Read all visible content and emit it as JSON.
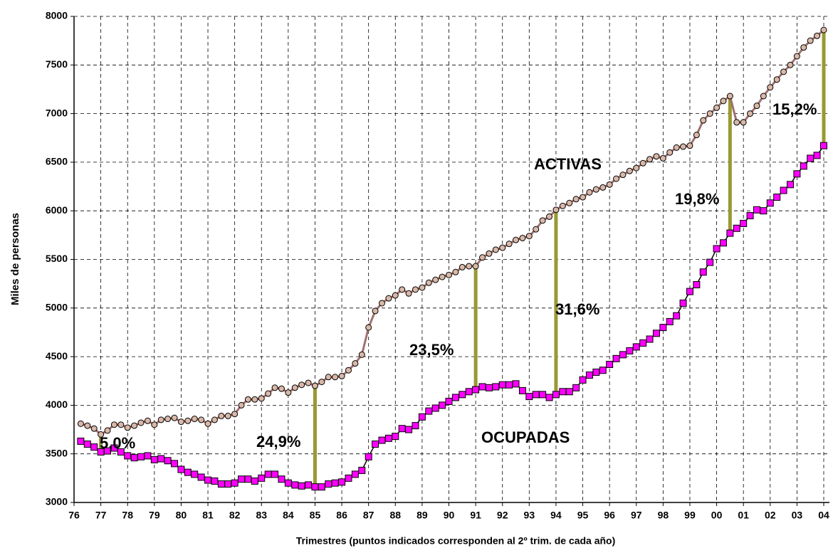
{
  "chart_data": {
    "type": "line",
    "xlabel": "Trimestres (puntos indicados corresponden al 2º trim. de cada año)",
    "ylabel": "Miles de personas",
    "categories": [
      "76",
      null,
      null,
      null,
      "77",
      null,
      null,
      null,
      "78",
      null,
      null,
      null,
      "79",
      null,
      null,
      null,
      "80",
      null,
      null,
      null,
      "81",
      null,
      null,
      null,
      "82",
      null,
      null,
      null,
      "83",
      null,
      null,
      null,
      "84",
      null,
      null,
      null,
      "85",
      null,
      null,
      null,
      "86",
      null,
      null,
      null,
      "87",
      null,
      null,
      null,
      "88",
      null,
      null,
      null,
      "89",
      null,
      null,
      null,
      "90",
      null,
      null,
      null,
      "91",
      null,
      null,
      null,
      "92",
      null,
      null,
      null,
      "93",
      null,
      null,
      null,
      "94",
      null,
      null,
      null,
      "95",
      null,
      null,
      null,
      "96",
      null,
      null,
      null,
      "97",
      null,
      null,
      null,
      "98",
      null,
      null,
      null,
      "99",
      null,
      null,
      null,
      "00",
      null,
      null,
      null,
      "01",
      null,
      null,
      null,
      "02",
      null,
      null,
      null,
      "03",
      null,
      null,
      null,
      "04"
    ],
    "series": [
      {
        "name": "ACTIVAS",
        "color": "#a07070",
        "marker_color": "#d9b8a8",
        "values": [
          null,
          3810,
          3790,
          3760,
          3700,
          3740,
          3800,
          3800,
          3770,
          3790,
          3820,
          3840,
          3800,
          3850,
          3860,
          3870,
          3830,
          3840,
          3860,
          3850,
          3810,
          3850,
          3890,
          3890,
          3910,
          4000,
          4060,
          4060,
          4070,
          4120,
          4180,
          4170,
          4130,
          4180,
          4210,
          4230,
          4200,
          4240,
          4290,
          4290,
          4300,
          4360,
          4430,
          4520,
          4800,
          4970,
          5050,
          5100,
          5130,
          5190,
          5150,
          5190,
          5210,
          5260,
          5290,
          5320,
          5340,
          5370,
          5420,
          5430,
          5430,
          5520,
          5560,
          5600,
          5620,
          5660,
          5700,
          5720,
          5740,
          5810,
          5900,
          5940,
          6010,
          6050,
          6080,
          6120,
          6140,
          6190,
          6220,
          6240,
          6270,
          6330,
          6370,
          6410,
          6440,
          6490,
          6530,
          6560,
          6540,
          6600,
          6650,
          6660,
          6670,
          6780,
          6930,
          7000,
          7060,
          7130,
          7180,
          6910,
          6910,
          7000,
          7080,
          7180,
          7270,
          7350,
          7430,
          7500,
          7590,
          7680,
          7750,
          7800,
          7860
        ]
      },
      {
        "name": "OCUPADAS",
        "color": "#000000",
        "marker_color": "#ff00ff",
        "values": [
          null,
          3630,
          3600,
          3570,
          3520,
          3530,
          3560,
          3520,
          3480,
          3460,
          3470,
          3480,
          3440,
          3450,
          3430,
          3400,
          3340,
          3310,
          3290,
          3260,
          3230,
          3220,
          3190,
          3190,
          3200,
          3240,
          3240,
          3220,
          3250,
          3290,
          3290,
          3240,
          3200,
          3180,
          3170,
          3180,
          3160,
          3160,
          3190,
          3200,
          3210,
          3250,
          3290,
          3330,
          3470,
          3600,
          3640,
          3660,
          3680,
          3760,
          3750,
          3790,
          3880,
          3940,
          3970,
          4000,
          4040,
          4080,
          4110,
          4140,
          4160,
          4190,
          4180,
          4190,
          4210,
          4210,
          4220,
          4150,
          4090,
          4110,
          4110,
          4080,
          4110,
          4140,
          4140,
          4180,
          4260,
          4310,
          4340,
          4360,
          4420,
          4480,
          4520,
          4560,
          4600,
          4640,
          4680,
          4740,
          4800,
          4860,
          4920,
          5050,
          5170,
          5240,
          5370,
          5470,
          5610,
          5670,
          5770,
          5820,
          5870,
          5950,
          6010,
          6000,
          6080,
          6140,
          6210,
          6270,
          6380,
          6460,
          6540,
          6570,
          6670
        ]
      }
    ],
    "gap_color": "#999933",
    "annotations": [
      "5,0%",
      "24,9%",
      "23,5%",
      "31,6%",
      "19,8%",
      "15,2%"
    ],
    "ylim": [
      3000,
      8000
    ],
    "yticks": [
      3000,
      3500,
      4000,
      4500,
      5000,
      5500,
      6000,
      6500,
      7000,
      7500,
      8000
    ],
    "grid": true
  }
}
